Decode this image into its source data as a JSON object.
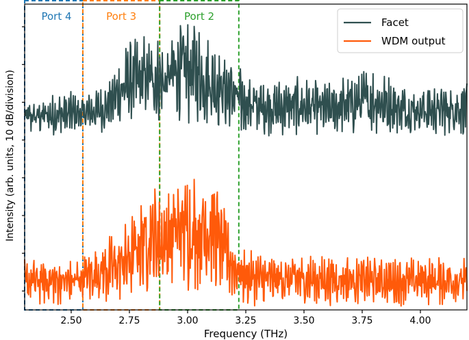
{
  "chart_data": {
    "type": "line",
    "title": "",
    "xlabel": "Frequency (THz)",
    "ylabel": "Intensity (arb. units, 10 dB/division)",
    "xlim": [
      2.3,
      4.2
    ],
    "ylim": [
      0,
      8.1
    ],
    "x_ticks": [
      2.5,
      2.75,
      3.0,
      3.25,
      3.5,
      3.75,
      4.0
    ],
    "x_tick_labels": [
      "2.50",
      "2.75",
      "3.00",
      "3.25",
      "3.50",
      "3.75",
      "4.00"
    ],
    "y_ticks": [
      0.5,
      1.5,
      2.5,
      3.5,
      4.5,
      5.5,
      6.5,
      7.5
    ],
    "y_tick_labels_shown": false,
    "grid": false,
    "legend": {
      "position": "top-right",
      "entries": [
        {
          "name": "Facet",
          "color": "#2f4f4f"
        },
        {
          "name": "WDM output",
          "color": "#ff5a0a"
        }
      ]
    },
    "regions": [
      {
        "label": "Port 4",
        "x_range": [
          2.3,
          2.55
        ],
        "color": "#1f77b4"
      },
      {
        "label": "Port 3",
        "x_range": [
          2.55,
          2.88
        ],
        "color": "#ff7f0e"
      },
      {
        "label": "Port 2",
        "x_range": [
          2.88,
          3.22
        ],
        "color": "#2ca02c"
      }
    ],
    "series": [
      {
        "name": "Facet",
        "color": "#2f4f4f",
        "description": "dense oscillating spectrum, baseline ~5.3, peaks up to ~7.8",
        "envelope": {
          "x": [
            2.3,
            2.5,
            2.55,
            2.65,
            2.75,
            2.85,
            2.9,
            2.95,
            3.0,
            3.05,
            3.15,
            3.25,
            3.35,
            3.5,
            3.6,
            3.7,
            3.8,
            3.9,
            4.0,
            4.1,
            4.2
          ],
          "y_low": [
            4.6,
            4.6,
            4.7,
            4.7,
            4.9,
            4.9,
            4.9,
            5.0,
            4.9,
            4.8,
            4.7,
            4.6,
            4.6,
            4.6,
            4.6,
            4.6,
            4.6,
            4.6,
            4.6,
            4.6,
            4.6
          ],
          "y_high": [
            5.6,
            5.8,
            5.7,
            6.0,
            7.2,
            7.4,
            7.1,
            7.7,
            7.8,
            7.6,
            7.0,
            6.3,
            6.1,
            6.2,
            6.0,
            6.3,
            6.5,
            6.1,
            6.0,
            6.0,
            6.1
          ]
        }
      },
      {
        "name": "WDM output",
        "color": "#ff5a0a",
        "description": "dense oscillating spectrum, baseline ~1.0, peaks up to ~4.0",
        "envelope": {
          "x": [
            2.3,
            2.5,
            2.55,
            2.65,
            2.75,
            2.8,
            2.85,
            2.9,
            2.95,
            3.0,
            3.05,
            3.1,
            3.15,
            3.2,
            3.25,
            3.35,
            3.5,
            3.7,
            3.9,
            4.1,
            4.2
          ],
          "y_low": [
            0.1,
            0.1,
            0.1,
            0.1,
            0.2,
            0.3,
            0.3,
            0.2,
            0.5,
            0.4,
            0.5,
            0.4,
            0.3,
            0.2,
            0.1,
            0.1,
            0.1,
            0.1,
            0.1,
            0.1,
            0.1
          ],
          "y_high": [
            1.4,
            1.4,
            1.6,
            2.0,
            2.4,
            3.2,
            3.6,
            3.4,
            3.7,
            3.8,
            3.6,
            4.0,
            3.0,
            2.0,
            1.6,
            1.5,
            1.5,
            1.5,
            1.4,
            1.5,
            1.4
          ]
        }
      }
    ]
  }
}
